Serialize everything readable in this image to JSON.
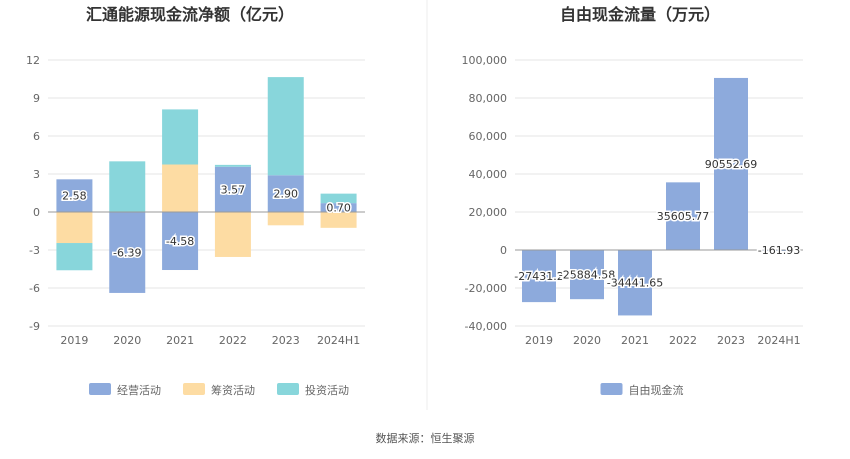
{
  "source": "数据来源：恒生聚源",
  "chart_data": [
    {
      "type": "bar",
      "stacked": true,
      "title": "汇通能源现金流净额（亿元）",
      "categories": [
        "2019",
        "2020",
        "2021",
        "2022",
        "2023",
        "2024H1"
      ],
      "ylim": [
        -9,
        12
      ],
      "yticks": [
        "12",
        "9",
        "6",
        "3",
        "0",
        "-3",
        "-6",
        "-9"
      ],
      "ytick_values": [
        12,
        9,
        6,
        3,
        0,
        -3,
        -6,
        -9
      ],
      "legend_position": "bottom-center",
      "series": [
        {
          "name": "经营活动",
          "color": "#8daadc",
          "values": [
            2.58,
            -6.39,
            -4.58,
            3.57,
            2.9,
            0.7
          ],
          "labels": [
            "2.58",
            "-6.39",
            "-4.58",
            "3.57",
            "2.90",
            "0.70"
          ]
        },
        {
          "name": "筹资活动",
          "color": "#fddca3",
          "values": [
            -2.45,
            0,
            3.75,
            -3.55,
            -1.05,
            -1.25
          ]
        },
        {
          "name": "投资活动",
          "color": "#88d6db",
          "values": [
            -2.15,
            4.0,
            4.35,
            0.15,
            7.75,
            0.75
          ]
        }
      ]
    },
    {
      "type": "bar",
      "title": "自由现金流量（万元）",
      "categories": [
        "2019",
        "2020",
        "2021",
        "2022",
        "2023",
        "2024H1"
      ],
      "ylim": [
        -40000,
        100000
      ],
      "yticks": [
        "100,000",
        "80,000",
        "60,000",
        "40,000",
        "20,000",
        "0",
        "-20,000",
        "-40,000"
      ],
      "ytick_values": [
        100000,
        80000,
        60000,
        40000,
        20000,
        0,
        -20000,
        -40000
      ],
      "legend_position": "bottom-center",
      "series": [
        {
          "name": "自由现金流",
          "color": "#8daadc",
          "values": [
            -27431.2,
            -25884.58,
            -34441.65,
            35605.77,
            90552.69,
            -161.93
          ],
          "labels": [
            "-27431.2",
            "-25884.58",
            "-34441.65",
            "35605.77",
            "90552.69",
            "-161.93"
          ]
        }
      ]
    }
  ]
}
